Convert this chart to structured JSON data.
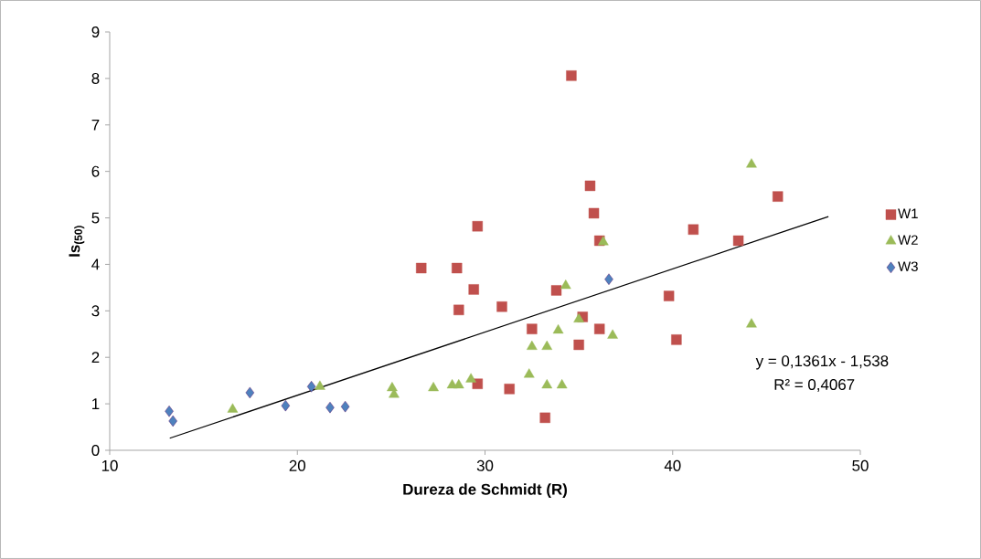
{
  "chart_data": {
    "type": "scatter",
    "xlabel": "Dureza de Schmidt (R)",
    "ylabel": "Is$_{(50)}$",
    "xlim": [
      10,
      50
    ],
    "xticks": [
      10,
      20,
      30,
      40,
      50
    ],
    "ylim": [
      0,
      9
    ],
    "yticks": [
      0,
      1,
      2,
      3,
      4,
      5,
      6,
      7,
      8,
      9
    ],
    "grid": false,
    "legend": "right",
    "annotations": [
      "y = 0,1361x - 1,538",
      "R² = 0,4067"
    ],
    "series": [
      {
        "name": "W1",
        "color": "#c0504d",
        "marker": "square",
        "x": [
          26.6,
          28.5,
          28.6,
          29.4,
          29.6,
          29.6,
          30.9,
          31.3,
          32.5,
          33.2,
          33.8,
          34.6,
          35.0,
          35.2,
          35.6,
          35.8,
          36.1,
          36.1,
          39.8,
          40.2,
          41.1,
          43.5,
          45.6
        ],
        "values": [
          3.92,
          3.92,
          3.02,
          3.46,
          4.82,
          1.43,
          3.09,
          1.32,
          2.61,
          0.7,
          3.44,
          8.06,
          2.27,
          2.87,
          5.69,
          5.1,
          4.51,
          2.61,
          3.32,
          2.38,
          4.75,
          4.51,
          5.46
        ]
      },
      {
        "name": "W2",
        "color": "#9bbb59",
        "marker": "triangle",
        "x": [
          16.55,
          21.2,
          25.05,
          25.15,
          27.25,
          28.25,
          28.6,
          29.25,
          32.35,
          33.3,
          34.1,
          32.5,
          33.3,
          33.9,
          35.0,
          36.8,
          34.3,
          36.3,
          44.2,
          44.2
        ],
        "values": [
          0.88,
          1.37,
          1.34,
          1.2,
          1.34,
          1.4,
          1.4,
          1.53,
          1.63,
          1.4,
          1.4,
          2.23,
          2.23,
          2.58,
          2.82,
          2.47,
          3.54,
          4.48,
          6.15,
          2.71
        ]
      },
      {
        "name": "W3",
        "color": "#4f81bd",
        "marker": "diamond",
        "x": [
          13.17,
          13.37,
          17.47,
          19.37,
          20.75,
          21.74,
          22.55,
          36.6
        ],
        "values": [
          0.84,
          0.63,
          1.24,
          0.96,
          1.37,
          0.92,
          0.94,
          3.68
        ]
      },
      {
        "type": "line",
        "color": "#000000",
        "marker": "none",
        "x": [
          13.2,
          48.3
        ],
        "values": [
          0.26,
          5.03
        ]
      }
    ]
  }
}
